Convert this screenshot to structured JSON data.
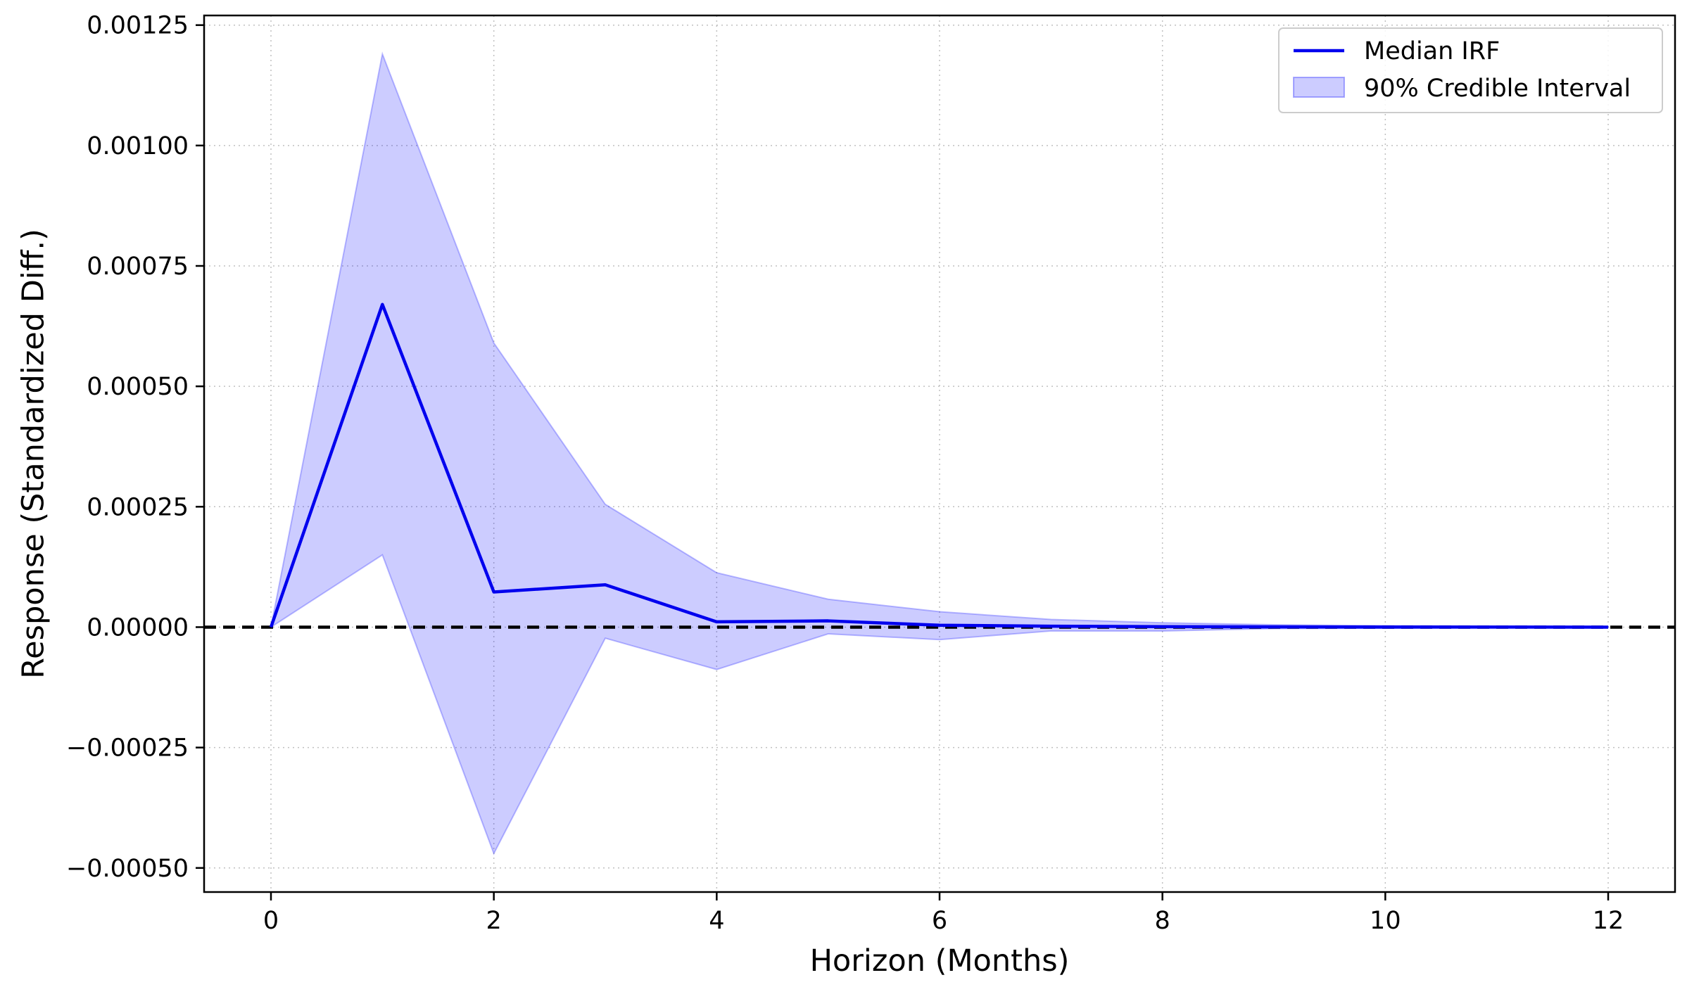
{
  "chart_data": {
    "type": "line",
    "title": "",
    "xlabel": "Horizon (Months)",
    "ylabel": "Response (Standardized Diff.)",
    "xlim": [
      -0.6,
      12.6
    ],
    "ylim": [
      -0.00055,
      0.00127
    ],
    "x_ticks": [
      0,
      2,
      4,
      6,
      8,
      10,
      12
    ],
    "x_tick_labels": [
      "0",
      "2",
      "4",
      "6",
      "8",
      "10",
      "12"
    ],
    "y_ticks": [
      -0.0005,
      -0.00025,
      0.0,
      0.00025,
      0.0005,
      0.00075,
      0.001,
      0.00125
    ],
    "y_tick_labels": [
      "−0.00050",
      "−0.00025",
      "0.00000",
      "0.00025",
      "0.00050",
      "0.00075",
      "0.00100",
      "0.00125"
    ],
    "grid": true,
    "legend_position": "top-right",
    "reference_line": {
      "y": 0,
      "style": "dashed",
      "color": "#000000"
    },
    "x": [
      0,
      1,
      2,
      3,
      4,
      5,
      6,
      7,
      8,
      9,
      10,
      11,
      12
    ],
    "series": [
      {
        "name": "Median IRF",
        "kind": "line",
        "color": "#0000ee",
        "values": [
          0.0,
          0.00067,
          7.3e-05,
          8.8e-05,
          1.1e-05,
          1.3e-05,
          4e-06,
          2e-06,
          1e-06,
          5e-07,
          2e-07,
          1e-07,
          0.0
        ]
      },
      {
        "name": "90% Credible Interval",
        "kind": "band",
        "color": "#0000ff",
        "opacity": 0.2,
        "upper": [
          0.0,
          0.00119,
          0.00059,
          0.000255,
          0.000113,
          5.8e-05,
          3.2e-05,
          1.6e-05,
          9e-06,
          5e-06,
          3e-06,
          2e-06,
          1e-06
        ],
        "lower": [
          0.0,
          0.00015,
          -0.00047,
          -2.3e-05,
          -8.8e-05,
          -1.4e-05,
          -2.6e-05,
          -8e-06,
          -8e-06,
          -3e-06,
          -2e-06,
          -1e-06,
          0.0
        ]
      }
    ]
  }
}
